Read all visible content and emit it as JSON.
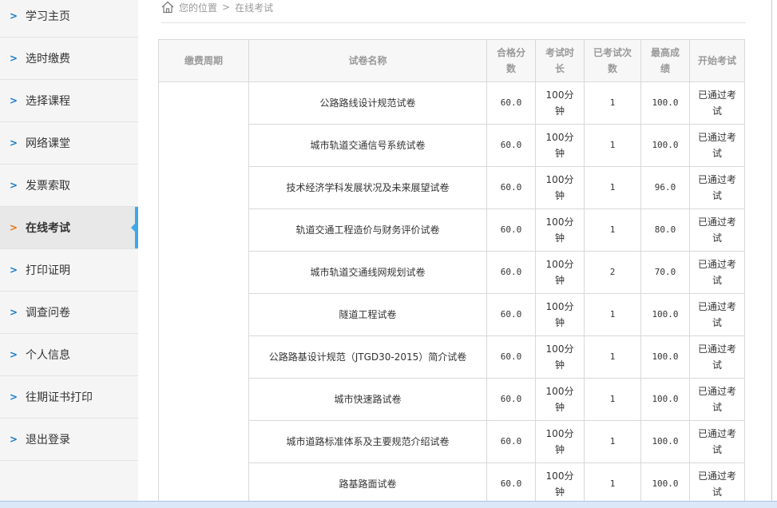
{
  "sidebar": {
    "items": [
      {
        "label": "学习主页"
      },
      {
        "label": "选时缴费"
      },
      {
        "label": "选择课程"
      },
      {
        "label": "网络课堂"
      },
      {
        "label": "发票索取"
      },
      {
        "label": "在线考试",
        "active": true
      },
      {
        "label": "打印证明"
      },
      {
        "label": "调查问卷"
      },
      {
        "label": "个人信息"
      },
      {
        "label": "往期证书打印"
      },
      {
        "label": "退出登录"
      }
    ]
  },
  "breadcrumb": {
    "prefix": "您的位置",
    "sep": ">",
    "current": "在线考试"
  },
  "table": {
    "headers": [
      "缴费周期",
      "试卷名称",
      "合格分数",
      "考试时长",
      "已考试次数",
      "最高成绩",
      "开始考试"
    ],
    "rows": [
      [
        "公路路线设计规范试卷",
        "60.0",
        "100分钟",
        "1",
        "100.0",
        "已通过考试"
      ],
      [
        "城市轨道交通信号系统试卷",
        "60.0",
        "100分钟",
        "1",
        "100.0",
        "已通过考试"
      ],
      [
        "技术经济学科发展状况及未来展望试卷",
        "60.0",
        "100分钟",
        "1",
        "96.0",
        "已通过考试"
      ],
      [
        "轨道交通工程造价与财务评价试卷",
        "60.0",
        "100分钟",
        "1",
        "80.0",
        "已通过考试"
      ],
      [
        "城市轨道交通线网规划试卷",
        "60.0",
        "100分钟",
        "2",
        "70.0",
        "已通过考试"
      ],
      [
        "隧道工程试卷",
        "60.0",
        "100分钟",
        "1",
        "100.0",
        "已通过考试"
      ],
      [
        "公路路基设计规范（JTGD30-2015）简介试卷",
        "60.0",
        "100分钟",
        "1",
        "100.0",
        "已通过考试"
      ],
      [
        "城市快速路试卷",
        "60.0",
        "100分钟",
        "1",
        "100.0",
        "已通过考试"
      ],
      [
        "城市道路标准体系及主要规范介绍试卷",
        "60.0",
        "100分钟",
        "1",
        "100.0",
        "已通过考试"
      ],
      [
        "路基路面试卷",
        "60.0",
        "100分钟",
        "1",
        "100.0",
        "已通过考试"
      ]
    ]
  }
}
